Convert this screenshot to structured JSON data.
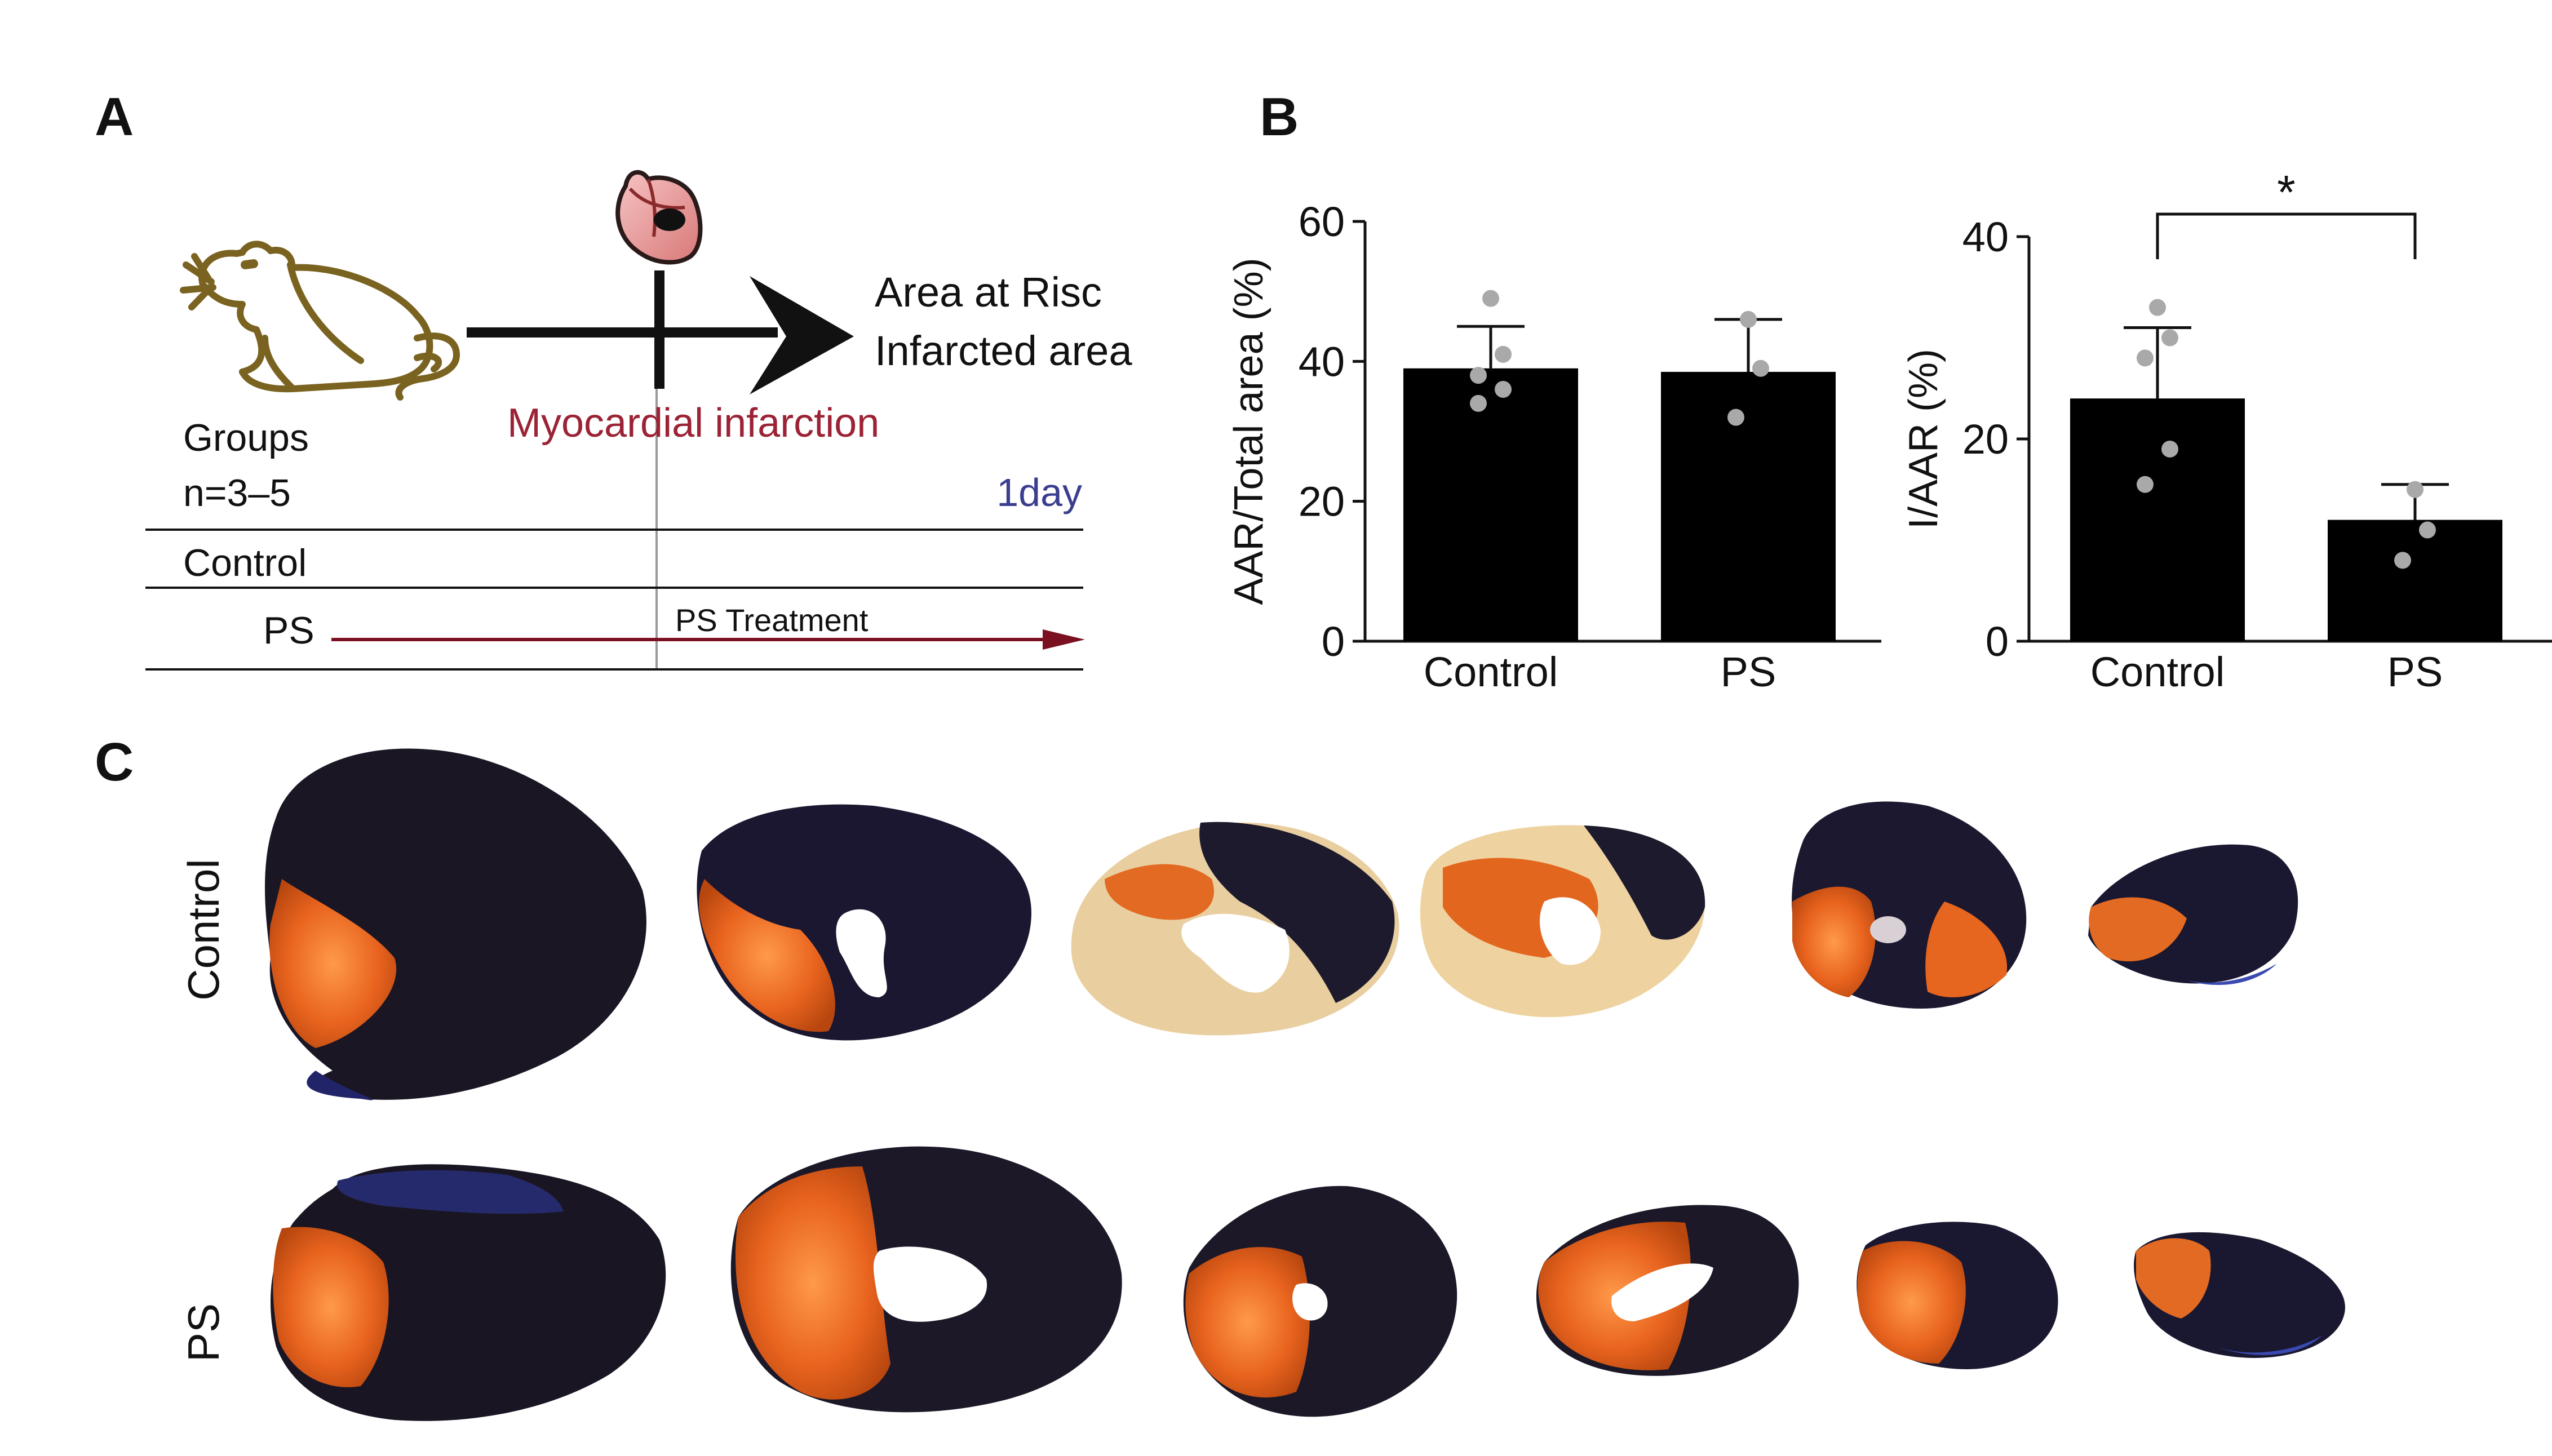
{
  "panels": {
    "a_label": "A",
    "b_label": "B",
    "c_label": "C"
  },
  "schematic": {
    "outcome_line1": "Area at Risc",
    "outcome_line2": "Infarcted area",
    "event_label": "Myocardial infarction",
    "groups_label": "Groups",
    "n_label": "n=3–5",
    "duration_label": "1day",
    "control_row": "Control",
    "ps_row": "PS",
    "treatment_label": "PS Treatment",
    "colors": {
      "event": "#9b2335",
      "duration": "#3b3d8f",
      "treatment_arrow": "#7a1020",
      "mouse": "#7a6320"
    }
  },
  "chart_data": [
    {
      "type": "bar",
      "categories": [
        "Control",
        "PS"
      ],
      "values": [
        39,
        38.5
      ],
      "error_upper": [
        45,
        46
      ],
      "points": [
        [
          49,
          41,
          38,
          36,
          34
        ],
        [
          46,
          39,
          32
        ]
      ],
      "ylabel": "AAR/Total area (%)",
      "ylim": [
        0,
        60
      ],
      "yticks": [
        0,
        20,
        40,
        60
      ],
      "significance": null
    },
    {
      "type": "bar",
      "categories": [
        "Control",
        "PS"
      ],
      "values": [
        24,
        12
      ],
      "error_upper": [
        31,
        15.5
      ],
      "points": [
        [
          33,
          30,
          28,
          19,
          15.5
        ],
        [
          15,
          11,
          8
        ]
      ],
      "ylabel": "I/AAR (%)",
      "ylim": [
        0,
        40
      ],
      "yticks": [
        0,
        20,
        40
      ],
      "significance": "*"
    }
  ],
  "photos": {
    "row1_label": "Control",
    "row2_label": "PS"
  }
}
